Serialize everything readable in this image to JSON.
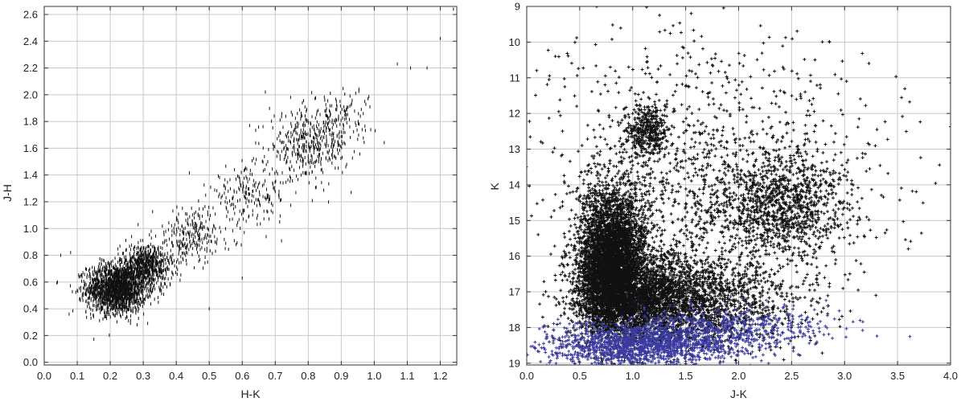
{
  "chart_data": [
    {
      "type": "scatter",
      "title": "",
      "xlabel": "H-K",
      "ylabel": "J-H",
      "xlim": [
        0.0,
        1.25
      ],
      "ylim": [
        -0.02,
        2.66
      ],
      "y_inverted": false,
      "grid": true,
      "x_ticks": [
        "0.0",
        "0.1",
        "0.2",
        "0.3",
        "0.4",
        "0.5",
        "0.6",
        "0.7",
        "0.8",
        "0.9",
        "1.0",
        "1.1",
        "1.2"
      ],
      "x_tick_values": [
        0.0,
        0.1,
        0.2,
        0.3,
        0.4,
        0.5,
        0.6,
        0.7,
        0.8,
        0.9,
        1.0,
        1.1,
        1.2
      ],
      "y_ticks": [
        "0.0",
        "0.2",
        "0.4",
        "0.6",
        "0.8",
        "1.0",
        "1.2",
        "1.4",
        "1.6",
        "1.8",
        "2.0",
        "2.2",
        "2.4",
        "2.6"
      ],
      "y_tick_values": [
        0.0,
        0.2,
        0.4,
        0.6,
        0.8,
        1.0,
        1.2,
        1.4,
        1.6,
        1.8,
        2.0,
        2.2,
        2.4,
        2.6
      ],
      "marker": "small vertical dashes",
      "point_color": "#111111",
      "n_points_approx": 3500,
      "series": [
        {
          "clusters": [
            {
              "cx": 0.22,
              "cy": 0.55,
              "sx": 0.045,
              "sy": 0.09,
              "n": 1800
            },
            {
              "cx": 0.31,
              "cy": 0.72,
              "sx": 0.04,
              "sy": 0.08,
              "n": 700
            },
            {
              "cx": 0.45,
              "cy": 0.95,
              "sx": 0.06,
              "sy": 0.1,
              "n": 250
            },
            {
              "cx": 0.62,
              "cy": 1.25,
              "sx": 0.06,
              "sy": 0.1,
              "n": 200
            },
            {
              "cx": 0.8,
              "cy": 1.62,
              "sx": 0.06,
              "sy": 0.12,
              "n": 400
            },
            {
              "cx": 0.9,
              "cy": 1.85,
              "sx": 0.05,
              "sy": 0.1,
              "n": 120
            }
          ],
          "outliers": [
            [
              1.24,
              2.64
            ],
            [
              1.2,
              2.42
            ],
            [
              1.16,
              2.2
            ],
            [
              1.11,
              2.2
            ],
            [
              1.07,
              2.23
            ],
            [
              0.67,
              2.02
            ],
            [
              0.6,
              0.63
            ],
            [
              0.05,
              0.8
            ],
            [
              0.08,
              0.82
            ],
            [
              0.04,
              0.6
            ],
            [
              0.93,
              1.27
            ],
            [
              0.5,
              0.4
            ]
          ]
        }
      ]
    },
    {
      "type": "scatter",
      "title": "",
      "xlabel": "J-K",
      "ylabel": "K",
      "xlim": [
        0.0,
        4.0
      ],
      "ylim": [
        19.05,
        9.0
      ],
      "y_inverted": true,
      "grid": true,
      "x_ticks": [
        "0.0",
        "0.5",
        "1.0",
        "1.5",
        "2.0",
        "2.5",
        "3.0",
        "3.5",
        "4.0"
      ],
      "x_tick_values": [
        0.0,
        0.5,
        1.0,
        1.5,
        2.0,
        2.5,
        3.0,
        3.5,
        4.0
      ],
      "y_ticks": [
        "9",
        "10",
        "11",
        "12",
        "13",
        "14",
        "15",
        "16",
        "17",
        "18",
        "19"
      ],
      "y_tick_values": [
        9,
        10,
        11,
        12,
        13,
        14,
        15,
        16,
        17,
        18,
        19
      ],
      "marker": "small plus signs",
      "n_points_approx": 12000,
      "series": [
        {
          "color": "#111111",
          "clusters": [
            {
              "cx": 0.8,
              "cy": 16.2,
              "sx": 0.15,
              "sy": 1.0,
              "n": 4500
            },
            {
              "cx": 1.1,
              "cy": 17.1,
              "sx": 0.3,
              "sy": 0.6,
              "n": 2200
            },
            {
              "cx": 1.7,
              "cy": 17.3,
              "sx": 0.45,
              "sy": 0.6,
              "n": 1200
            },
            {
              "cx": 1.15,
              "cy": 12.5,
              "sx": 0.1,
              "sy": 0.35,
              "n": 400
            },
            {
              "cx": 2.4,
              "cy": 14.5,
              "sx": 0.3,
              "sy": 0.7,
              "n": 900
            },
            {
              "cx": 1.8,
              "cy": 14.5,
              "sx": 0.8,
              "sy": 1.5,
              "n": 1200
            },
            {
              "cx": 1.4,
              "cy": 11.5,
              "sx": 1.0,
              "sy": 1.2,
              "n": 300
            }
          ]
        },
        {
          "color": "#3a3aa0",
          "clusters": [
            {
              "cx": 1.1,
              "cy": 18.5,
              "sx": 0.45,
              "sy": 0.3,
              "n": 1500
            },
            {
              "cx": 1.9,
              "cy": 18.0,
              "sx": 0.5,
              "sy": 0.3,
              "n": 500
            }
          ]
        }
      ]
    }
  ]
}
